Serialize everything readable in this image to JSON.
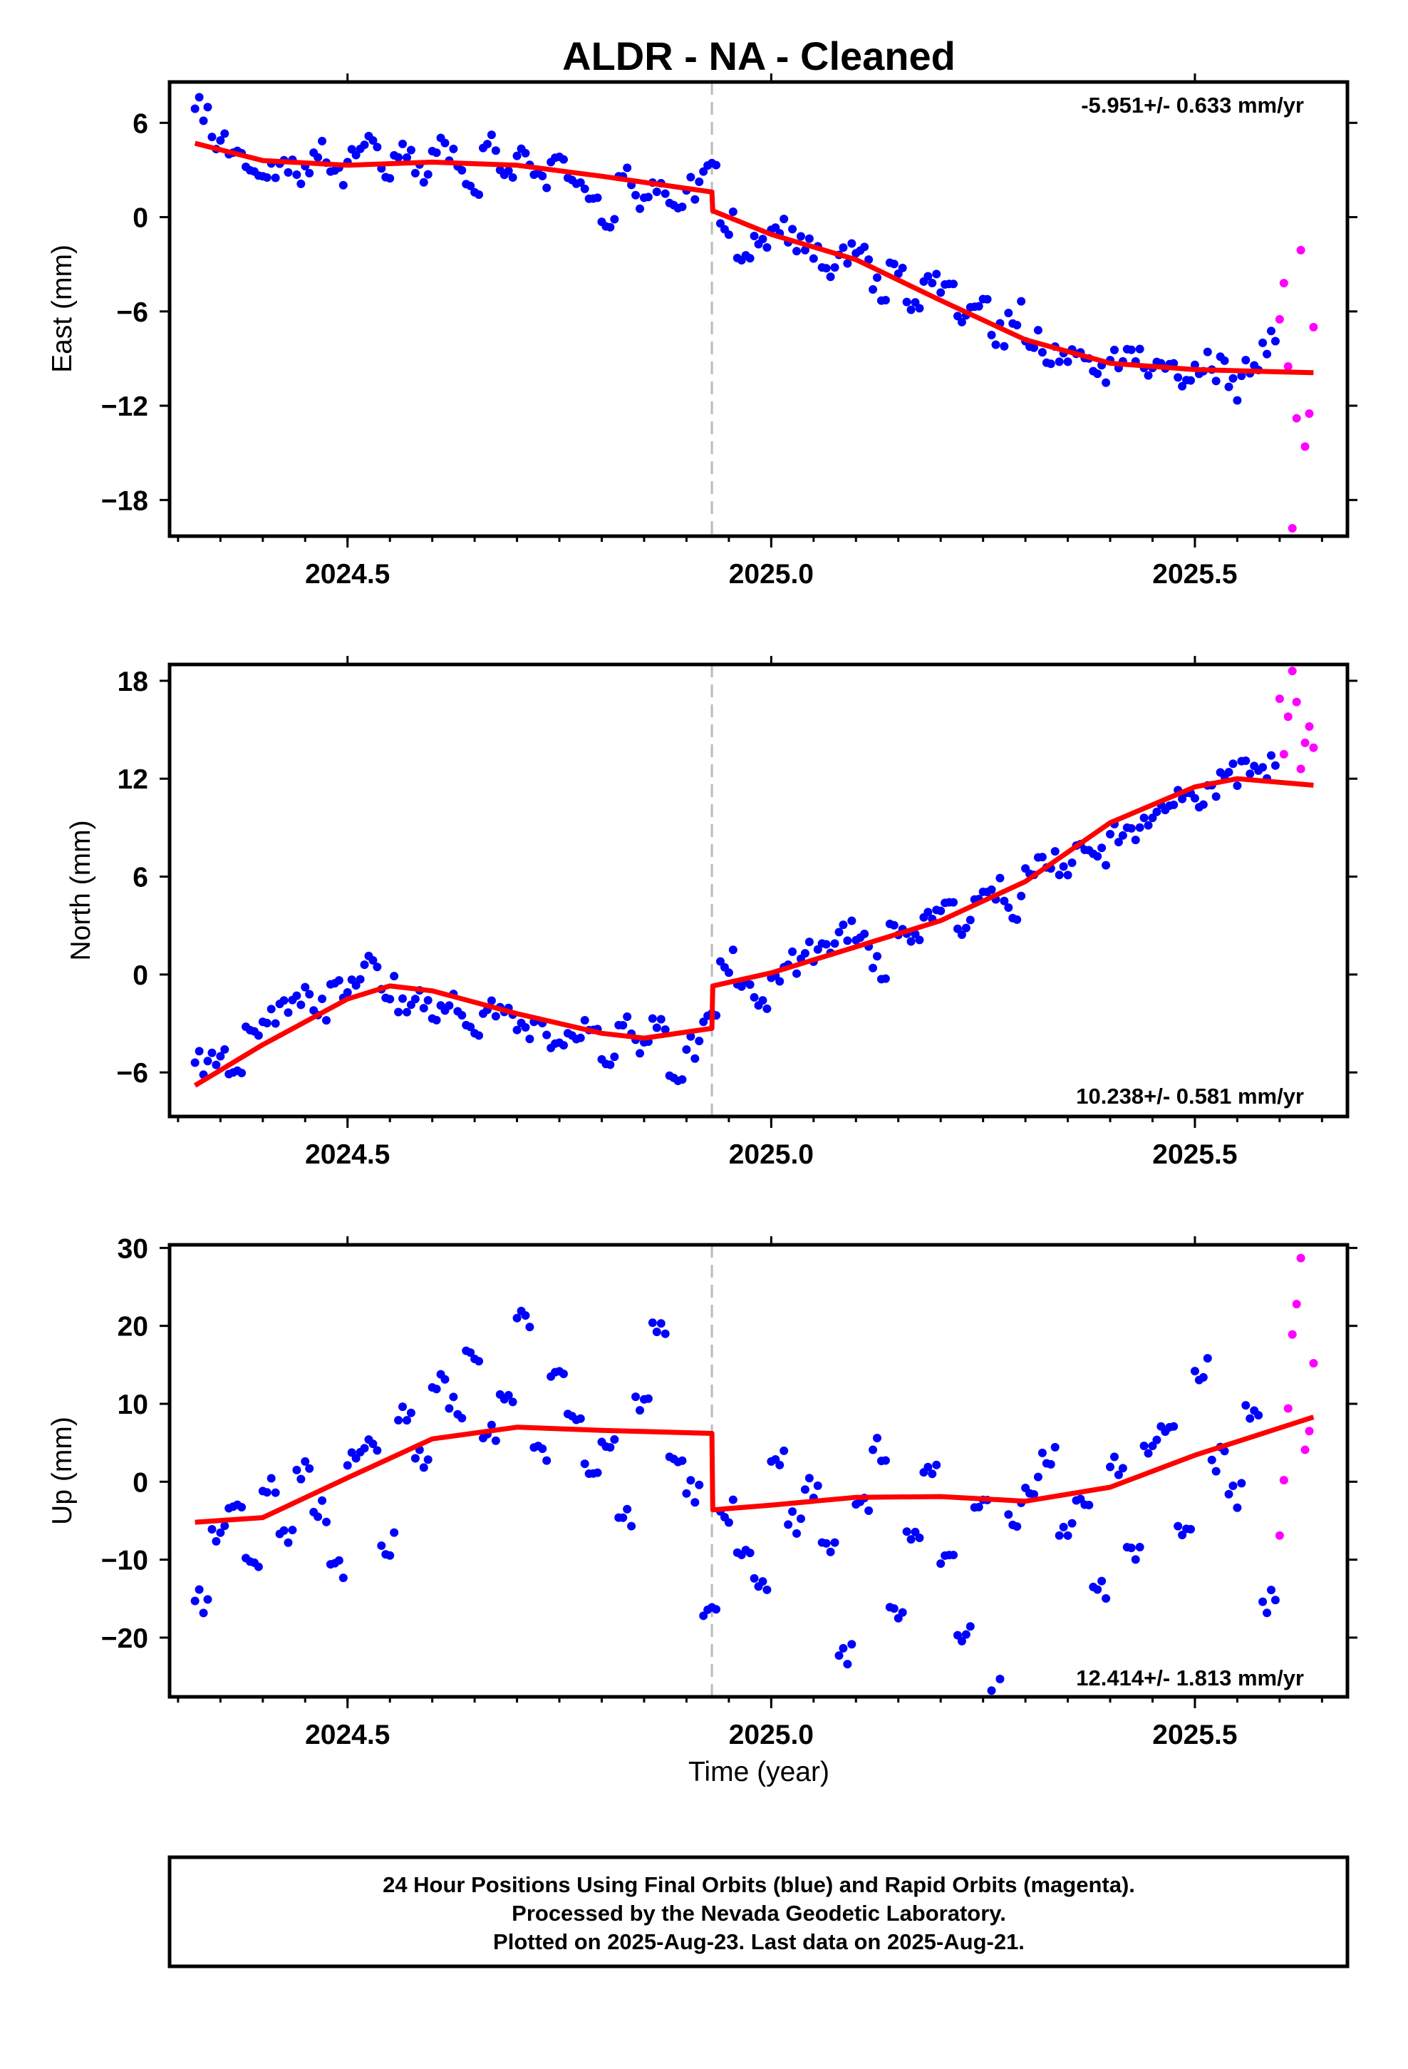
{
  "title": "ALDR  - NA - Cleaned",
  "x_label": "Time (year)",
  "footer": {
    "line1": "24 Hour Positions Using Final Orbits (blue) and Rapid Orbits (magenta).",
    "line2": "Processed by the Nevada Geodetic Laboratory.",
    "line3": "Plotted on 2025-Aug-23. Last data on 2025-Aug-21."
  },
  "colors": {
    "final_orbits": "#0000ff",
    "rapid_orbits": "#ff00ff",
    "model": "#ff0000",
    "event_line": "#bbbbbb",
    "frame": "#000000"
  },
  "chart_data": [
    {
      "type": "scatter",
      "panel": "east",
      "ylabel": "East (mm)",
      "xlim": [
        2024.29,
        2025.68
      ],
      "ylim": [
        -20.3,
        8.6
      ],
      "xticks": [
        2024.5,
        2025.0,
        2025.5
      ],
      "xtick_labels": [
        "2024.5",
        "2025.0",
        "2025.5"
      ],
      "yticks": [
        -18,
        -12,
        -6,
        0,
        6
      ],
      "ytick_labels": [
        "−18",
        "−12",
        "−6",
        "0",
        "6"
      ],
      "rate_label": "-5.951+/- 0.633 mm/yr",
      "rate_position": "top-right",
      "event_x": 2024.93,
      "model": {
        "x": [
          2024.32,
          2024.4,
          2024.5,
          2024.6,
          2024.7,
          2024.8,
          2024.93,
          2024.931,
          2025.0,
          2025.1,
          2025.2,
          2025.3,
          2025.4,
          2025.5,
          2025.64
        ],
        "y": [
          4.7,
          3.6,
          3.3,
          3.5,
          3.3,
          2.6,
          1.6,
          0.4,
          -1.1,
          -2.7,
          -5.3,
          -7.8,
          -9.3,
          -9.7,
          -9.9
        ]
      },
      "series": [
        {
          "name": "Final Orbits",
          "color": "#0000ff",
          "x": [
            2024.32,
            2024.34,
            2024.36,
            2024.38,
            2024.4,
            2024.42,
            2024.44,
            2024.46,
            2024.48,
            2024.5,
            2024.52,
            2024.54,
            2024.56,
            2024.58,
            2024.6,
            2024.62,
            2024.64,
            2024.66,
            2024.68,
            2024.7,
            2024.72,
            2024.74,
            2024.76,
            2024.78,
            2024.8,
            2024.82,
            2024.84,
            2024.86,
            2024.88,
            2024.9,
            2024.92,
            2024.94,
            2024.96,
            2024.98,
            2025.0,
            2025.02,
            2025.04,
            2025.06,
            2025.08,
            2025.1,
            2025.12,
            2025.14,
            2025.16,
            2025.18,
            2025.2,
            2025.22,
            2025.24,
            2025.26,
            2025.28,
            2025.3,
            2025.32,
            2025.34,
            2025.36,
            2025.38,
            2025.4,
            2025.42,
            2025.44,
            2025.46,
            2025.48,
            2025.5,
            2025.52,
            2025.54,
            2025.56,
            2025.58
          ],
          "y": [
            6.9,
            5.1,
            4.0,
            3.2,
            2.6,
            3.4,
            2.7,
            4.1,
            2.9,
            3.5,
            4.6,
            3.1,
            3.8,
            2.8,
            4.2,
            3.6,
            2.1,
            4.4,
            3.0,
            3.9,
            2.7,
            3.5,
            2.5,
            1.8,
            -0.3,
            2.6,
            1.4,
            2.2,
            0.9,
            1.7,
            2.9,
            -0.4,
            -2.6,
            -1.2,
            -0.8,
            -1.6,
            -2.1,
            -3.2,
            -2.4,
            -2.3,
            -4.6,
            -2.9,
            -5.4,
            -4.1,
            -4.8,
            -6.3,
            -5.7,
            -7.5,
            -6.1,
            -7.9,
            -8.6,
            -9.2,
            -8.7,
            -9.8,
            -9.1,
            -8.4,
            -9.6,
            -9.3,
            -10.2,
            -9.4,
            -9.7,
            -10.8,
            -9.1,
            -8.0
          ]
        },
        {
          "name": "Rapid Orbits",
          "color": "#ff00ff",
          "x": [
            2025.6,
            2025.61,
            2025.62,
            2025.63,
            2025.64
          ],
          "y": [
            -6.5,
            -9.5,
            -12.8,
            -14.6,
            -7.0
          ],
          "x_extra": [
            2025.605,
            2025.615,
            2025.625,
            2025.635
          ],
          "y_extra": [
            -4.2,
            -19.8,
            -2.1,
            -12.5
          ]
        }
      ]
    },
    {
      "type": "scatter",
      "panel": "north",
      "ylabel": "North (mm)",
      "xlim": [
        2024.29,
        2025.68
      ],
      "ylim": [
        -8.7,
        19.0
      ],
      "xticks": [
        2024.5,
        2025.0,
        2025.5
      ],
      "xtick_labels": [
        "2024.5",
        "2025.0",
        "2025.5"
      ],
      "yticks": [
        -6,
        0,
        6,
        12,
        18
      ],
      "ytick_labels": [
        "−6",
        "0",
        "6",
        "12",
        "18"
      ],
      "rate_label": "10.238+/- 0.581 mm/yr",
      "rate_position": "bottom-right",
      "event_x": 2024.93,
      "model": {
        "x": [
          2024.32,
          2024.4,
          2024.5,
          2024.55,
          2024.6,
          2024.7,
          2024.8,
          2024.85,
          2024.93,
          2024.931,
          2025.0,
          2025.1,
          2025.2,
          2025.3,
          2025.35,
          2025.4,
          2025.5,
          2025.55,
          2025.64
        ],
        "y": [
          -6.8,
          -4.3,
          -1.5,
          -0.7,
          -1.0,
          -2.4,
          -3.6,
          -3.9,
          -3.3,
          -0.7,
          0.1,
          1.7,
          3.3,
          5.7,
          7.5,
          9.3,
          11.5,
          12.0,
          11.6
        ]
      },
      "series": [
        {
          "name": "Final Orbits",
          "color": "#0000ff",
          "x": [
            2024.32,
            2024.34,
            2024.36,
            2024.38,
            2024.4,
            2024.42,
            2024.44,
            2024.46,
            2024.48,
            2024.5,
            2024.52,
            2024.54,
            2024.56,
            2024.58,
            2024.6,
            2024.62,
            2024.64,
            2024.66,
            2024.68,
            2024.7,
            2024.72,
            2024.74,
            2024.76,
            2024.78,
            2024.8,
            2024.82,
            2024.84,
            2024.86,
            2024.88,
            2024.9,
            2024.92,
            2024.94,
            2024.96,
            2024.98,
            2025.0,
            2025.02,
            2025.04,
            2025.06,
            2025.08,
            2025.1,
            2025.12,
            2025.14,
            2025.16,
            2025.18,
            2025.2,
            2025.22,
            2025.24,
            2025.26,
            2025.28,
            2025.3,
            2025.32,
            2025.34,
            2025.36,
            2025.38,
            2025.4,
            2025.42,
            2025.44,
            2025.46,
            2025.48,
            2025.5,
            2025.52,
            2025.54,
            2025.56,
            2025.58
          ],
          "y": [
            -5.4,
            -4.8,
            -6.1,
            -3.2,
            -2.9,
            -1.8,
            -1.3,
            -2.2,
            -0.6,
            -1.1,
            0.6,
            -0.9,
            -2.3,
            -1.5,
            -2.7,
            -1.9,
            -3.1,
            -2.4,
            -2.0,
            -3.4,
            -2.9,
            -4.5,
            -3.6,
            -2.8,
            -5.2,
            -3.1,
            -4.0,
            -2.7,
            -6.2,
            -4.6,
            -2.9,
            0.8,
            -0.6,
            -1.4,
            -0.2,
            0.6,
            1.3,
            1.9,
            2.6,
            2.1,
            0.4,
            3.1,
            2.5,
            3.5,
            3.9,
            2.8,
            4.6,
            5.2,
            4.1,
            6.5,
            7.2,
            6.1,
            7.9,
            7.4,
            8.6,
            9.0,
            9.6,
            10.4,
            11.3,
            10.8,
            11.6,
            12.4,
            13.1,
            12.7
          ]
        },
        {
          "name": "Rapid Orbits",
          "color": "#ff00ff",
          "x": [
            2025.6,
            2025.61,
            2025.62,
            2025.63,
            2025.64
          ],
          "y": [
            16.9,
            15.8,
            16.7,
            14.2,
            13.9
          ],
          "x_extra": [
            2025.605,
            2025.615,
            2025.625,
            2025.635
          ],
          "y_extra": [
            13.5,
            18.6,
            12.6,
            15.2
          ]
        }
      ]
    },
    {
      "type": "scatter",
      "panel": "up",
      "ylabel": "Up (mm)",
      "xlim": [
        2024.29,
        2025.68
      ],
      "ylim": [
        -27.6,
        30.4
      ],
      "xticks": [
        2024.5,
        2025.0,
        2025.5
      ],
      "xtick_labels": [
        "2024.5",
        "2025.0",
        "2025.5"
      ],
      "yticks": [
        -20,
        -10,
        0,
        10,
        20,
        30
      ],
      "ytick_labels": [
        "−20",
        "−10",
        "0",
        "10",
        "20",
        "30"
      ],
      "rate_label": "12.414+/- 1.813 mm/yr",
      "rate_position": "bottom-right",
      "event_x": 2024.93,
      "model": {
        "x": [
          2024.32,
          2024.4,
          2024.5,
          2024.6,
          2024.7,
          2024.8,
          2024.93,
          2024.931,
          2025.0,
          2025.1,
          2025.2,
          2025.3,
          2025.4,
          2025.5,
          2025.64
        ],
        "y": [
          -5.2,
          -4.6,
          0.5,
          5.5,
          7.0,
          6.6,
          6.2,
          -3.6,
          -3.0,
          -2.0,
          -1.9,
          -2.5,
          -0.7,
          3.4,
          8.3
        ]
      },
      "series": [
        {
          "name": "Final Orbits",
          "color": "#0000ff",
          "x": [
            2024.32,
            2024.34,
            2024.36,
            2024.38,
            2024.4,
            2024.42,
            2024.44,
            2024.46,
            2024.48,
            2024.5,
            2024.52,
            2024.54,
            2024.56,
            2024.58,
            2024.6,
            2024.62,
            2024.64,
            2024.66,
            2024.68,
            2024.7,
            2024.72,
            2024.74,
            2024.76,
            2024.78,
            2024.8,
            2024.82,
            2024.84,
            2024.86,
            2024.88,
            2024.9,
            2024.92,
            2024.94,
            2024.96,
            2024.98,
            2025.0,
            2025.02,
            2025.04,
            2025.06,
            2025.08,
            2025.1,
            2025.12,
            2025.14,
            2025.16,
            2025.18,
            2025.2,
            2025.22,
            2025.24,
            2025.26,
            2025.28,
            2025.3,
            2025.32,
            2025.34,
            2025.36,
            2025.38,
            2025.4,
            2025.42,
            2025.44,
            2025.46,
            2025.48,
            2025.5,
            2025.52,
            2025.54,
            2025.56,
            2025.58
          ],
          "y": [
            -15.3,
            -6.1,
            -3.4,
            -9.8,
            -1.2,
            -6.7,
            1.5,
            -3.9,
            -10.6,
            2.1,
            4.3,
            -8.2,
            7.9,
            3.0,
            12.1,
            9.4,
            16.8,
            5.6,
            11.2,
            21.0,
            4.4,
            13.5,
            8.7,
            2.3,
            5.1,
            -4.6,
            10.9,
            20.4,
            3.2,
            -1.5,
            -17.2,
            -3.8,
            -9.1,
            -12.4,
            2.6,
            -5.5,
            -1.0,
            -7.8,
            -22.3,
            -2.9,
            4.1,
            -16.1,
            -6.4,
            1.2,
            -10.5,
            -19.7,
            -3.3,
            -26.8,
            -4.2,
            -0.8,
            3.7,
            -6.9,
            -2.4,
            -13.5,
            1.9,
            -8.4,
            4.6,
            7.1,
            -5.7,
            14.2,
            2.8,
            -1.6,
            9.8,
            -15.4
          ]
        },
        {
          "name": "Rapid Orbits",
          "color": "#ff00ff",
          "x": [
            2025.6,
            2025.61,
            2025.62,
            2025.63,
            2025.64
          ],
          "y": [
            -6.9,
            9.4,
            22.8,
            4.1,
            15.2
          ],
          "x_extra": [
            2025.605,
            2025.615,
            2025.625,
            2025.635
          ],
          "y_extra": [
            0.2,
            18.9,
            28.7,
            6.5
          ]
        }
      ]
    }
  ]
}
